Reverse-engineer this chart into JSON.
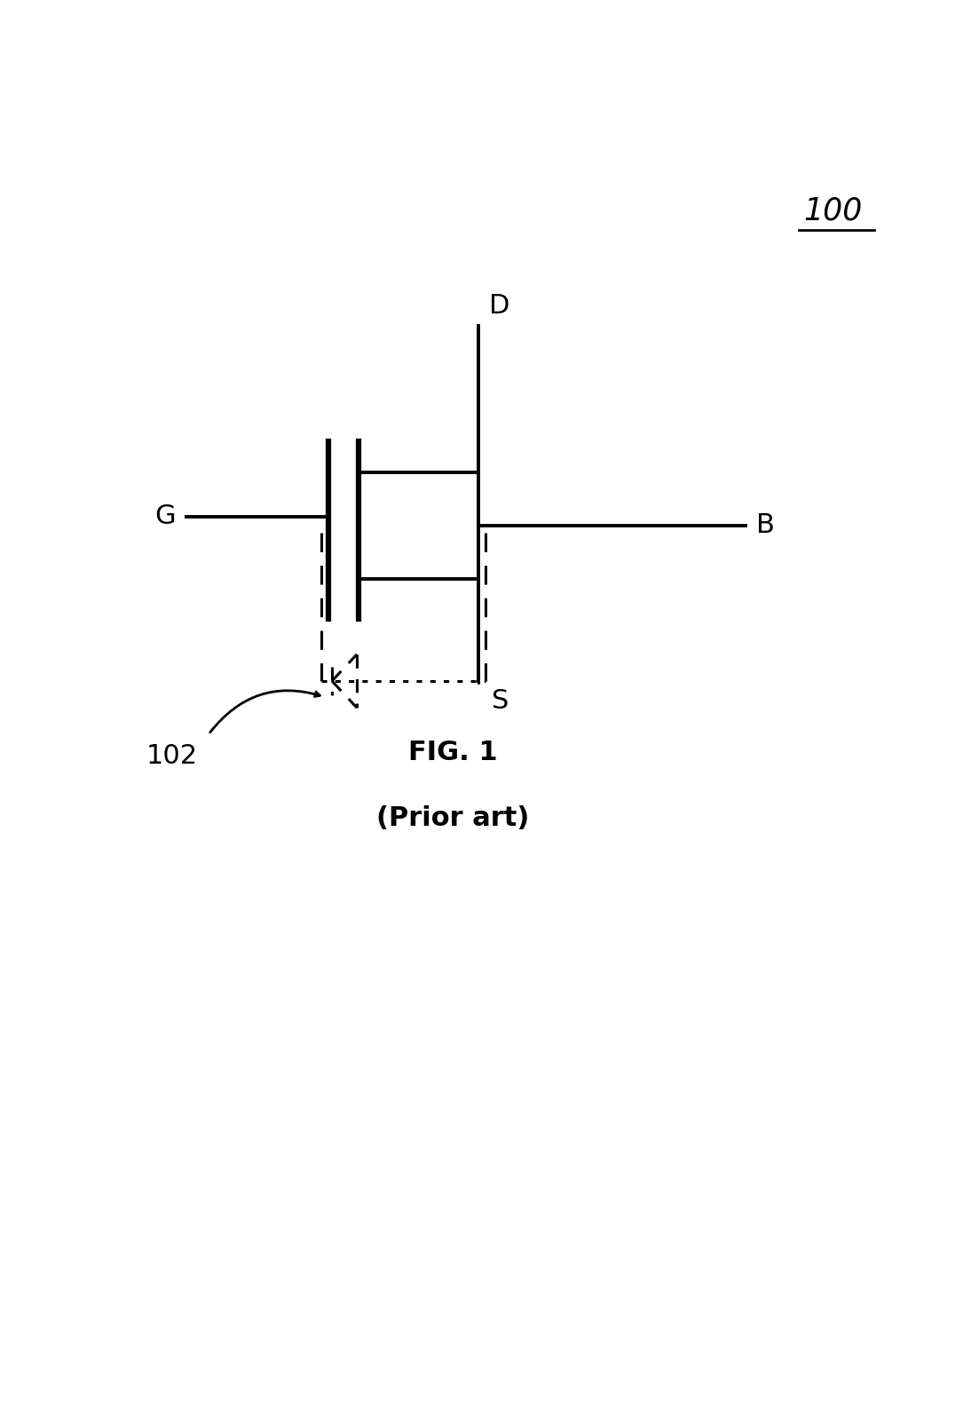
{
  "fig_width": 10.85,
  "fig_height": 15.97,
  "bg_color": "#ffffff",
  "line_color": "#000000",
  "line_width": 2.8,
  "dashed_lw": 2.2,
  "label_100": "100",
  "label_fig": "FIG. 1",
  "label_prior": "(Prior art)",
  "label_G": "G",
  "label_D": "D",
  "label_S": "S",
  "label_B": "B",
  "label_102": "102",
  "title_fontsize": 22,
  "label_fontsize": 22
}
